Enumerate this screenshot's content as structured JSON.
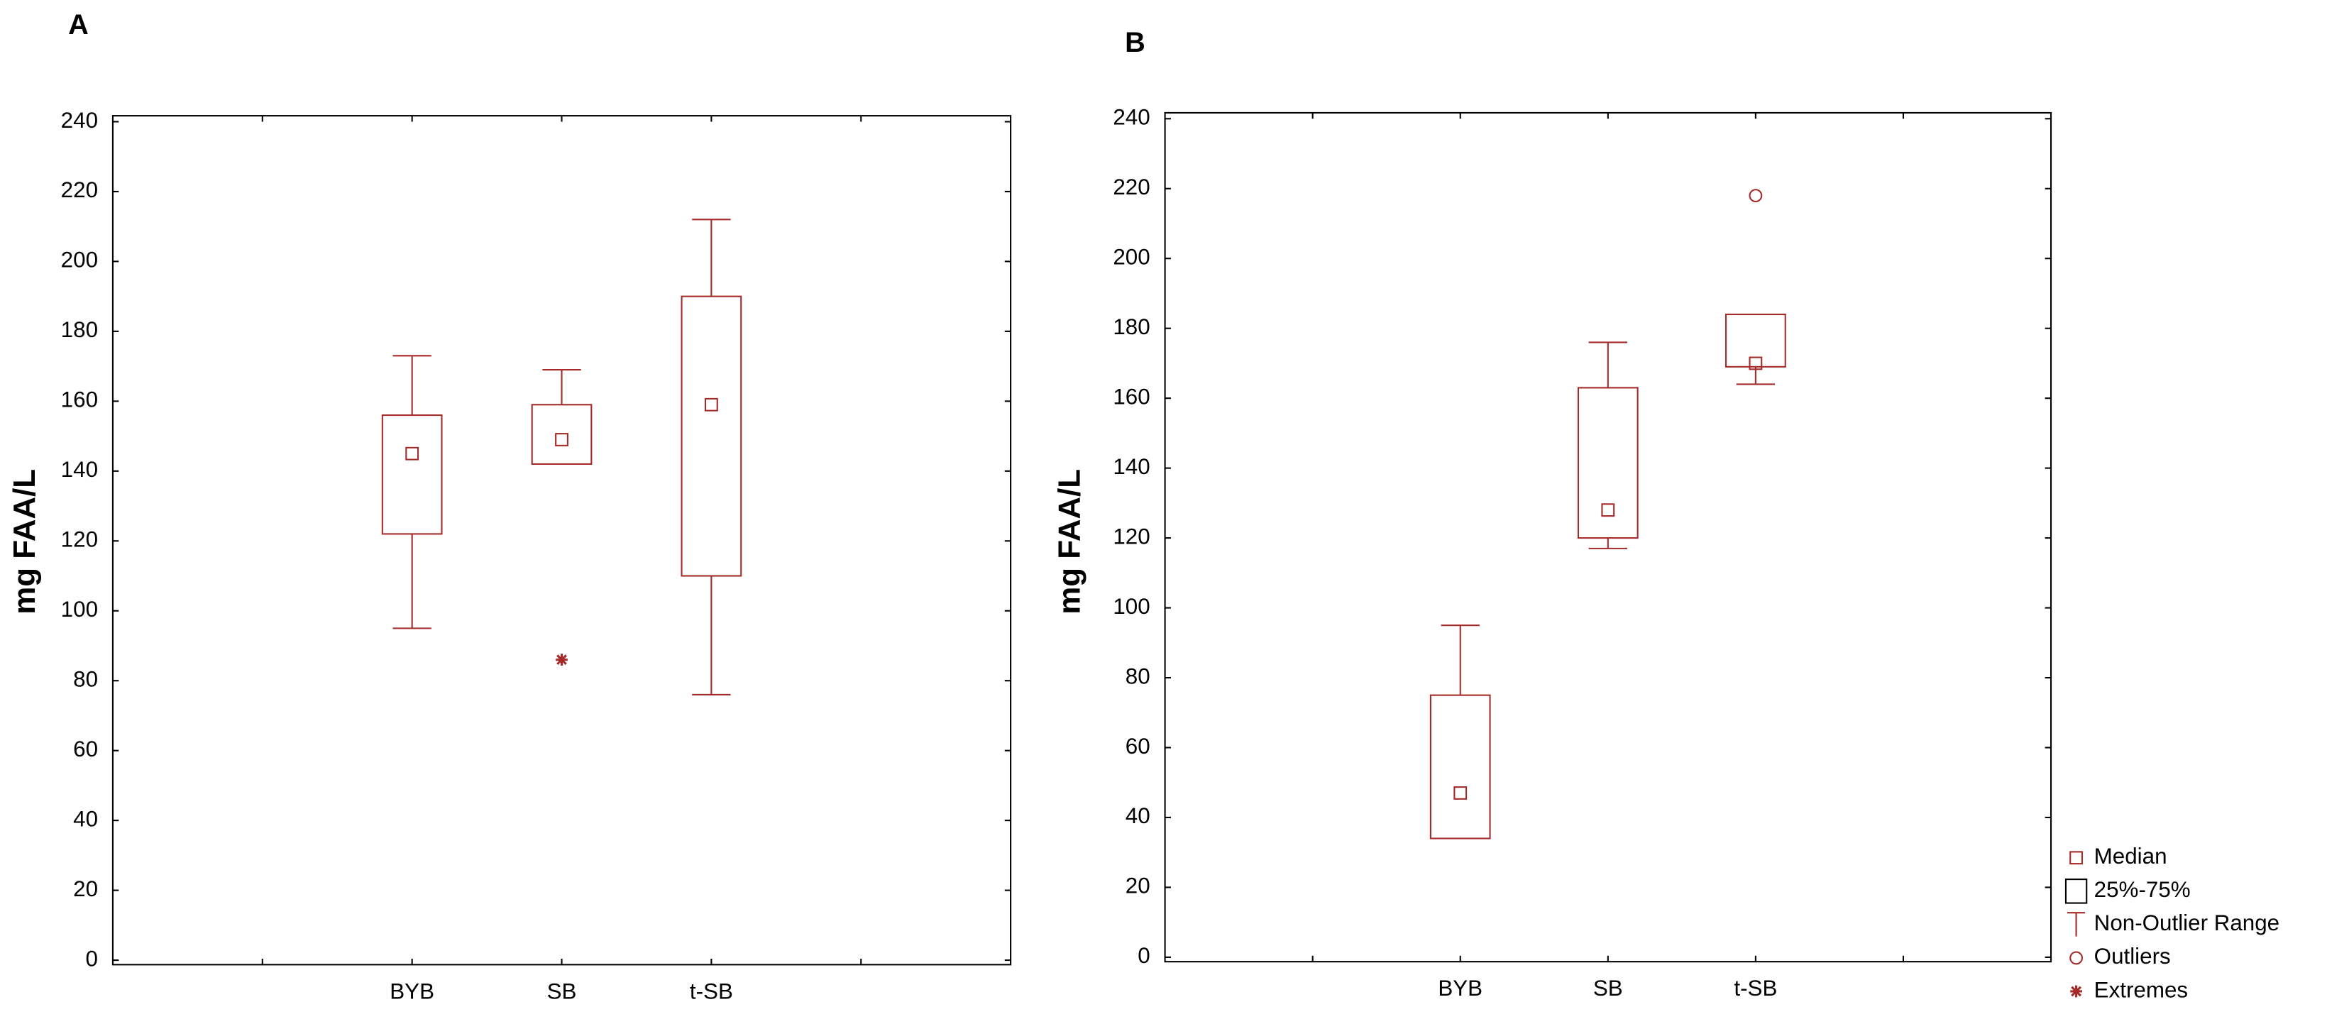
{
  "chart_data": [
    {
      "type": "box",
      "panel_label": "A",
      "y_label": "mg FAA/L",
      "categories": [
        null,
        "BYB",
        "SB",
        "t-SB",
        null
      ],
      "min": [
        null,
        95,
        142,
        76,
        null
      ],
      "q1": [
        null,
        122,
        142,
        110,
        null
      ],
      "median": [
        null,
        145,
        149,
        159,
        null
      ],
      "q3": [
        null,
        156,
        159,
        190,
        null
      ],
      "max": [
        null,
        173,
        169,
        212,
        null
      ],
      "outliers": [
        null,
        null,
        null,
        null,
        null
      ],
      "extremes": [
        null,
        null,
        86,
        null,
        null
      ],
      "color": "#a52a2a",
      "ylim": [
        0,
        240
      ],
      "yticks": [
        0,
        20,
        40,
        60,
        80,
        100,
        120,
        140,
        160,
        180,
        200,
        220,
        240
      ],
      "grid": false
    },
    {
      "type": "box",
      "panel_label": "B",
      "y_label": "mg FAA/L",
      "categories": [
        null,
        "BYB",
        "SB",
        "t-SB",
        null
      ],
      "min": [
        null,
        34,
        117,
        164,
        null
      ],
      "q1": [
        null,
        34,
        120,
        169,
        null
      ],
      "median": [
        null,
        47,
        128,
        170,
        null
      ],
      "q3": [
        null,
        75,
        163,
        184,
        null
      ],
      "max": [
        null,
        95,
        176,
        184,
        null
      ],
      "outliers": [
        null,
        null,
        null,
        218,
        null
      ],
      "extremes": [
        null,
        null,
        null,
        null,
        null
      ],
      "color": "#a52a2a",
      "ylim": [
        0,
        240
      ],
      "yticks": [
        0,
        20,
        40,
        60,
        80,
        100,
        120,
        140,
        160,
        180,
        200,
        220,
        240
      ],
      "grid": false,
      "legend": [
        "Median",
        "25%-75%",
        "Non-Outlier Range",
        "Outliers",
        "Extremes"
      ]
    }
  ]
}
